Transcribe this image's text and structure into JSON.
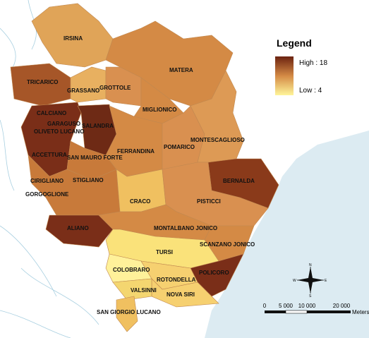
{
  "legend": {
    "title": "Legend",
    "high": "High : 18",
    "low": "Low : 4"
  },
  "labels": [
    "IRSINA",
    "MATERA",
    "TRICARICO",
    "GRASSANO",
    "GROTTOLE",
    "MIGLIONICO",
    "CALCIANO",
    "GARAGUSO",
    "SALANDRA",
    "OLIVETO LUCANO",
    "ACCETTURA",
    "SAN MAURO FORTE",
    "FERRANDINA",
    "POMARICO",
    "MONTESCAGLIOSO",
    "BERNALDA",
    "CIRIGLIANO",
    "GORGOGLIONE",
    "STIGLIANO",
    "CRACO",
    "PISTICCI",
    "ALIANO",
    "MONTALBANO JONICO",
    "SCANZANO JONICO",
    "TURSI",
    "COLOBRARO",
    "POLICORO",
    "ROTONDELLA",
    "VALSINNI",
    "NOVA SIRI",
    "SAN GIORGIO LUCANO"
  ],
  "scale_bar": {
    "labels": [
      "0",
      "5 000",
      "10 000",
      "20 000"
    ],
    "unit": "Meters"
  },
  "compass": {
    "n": "N",
    "s": "S",
    "e": "E",
    "w": "W"
  }
}
